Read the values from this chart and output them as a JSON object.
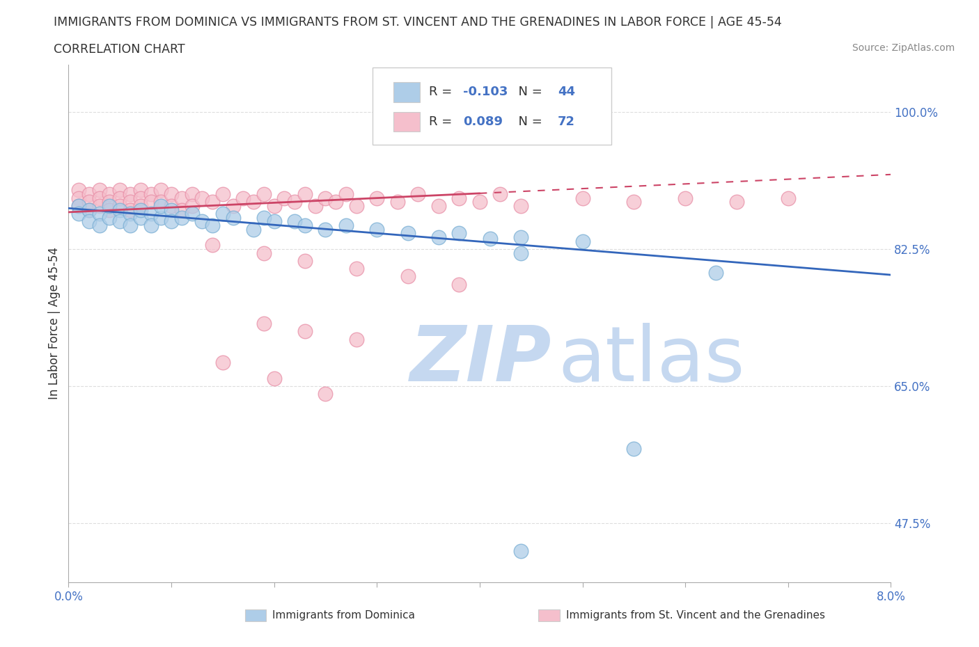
{
  "title": "IMMIGRANTS FROM DOMINICA VS IMMIGRANTS FROM ST. VINCENT AND THE GRENADINES IN LABOR FORCE | AGE 45-54",
  "subtitle": "CORRELATION CHART",
  "source": "Source: ZipAtlas.com",
  "ylabel": "In Labor Force | Age 45-54",
  "xlim": [
    0.0,
    0.08
  ],
  "ylim": [
    0.4,
    1.06
  ],
  "ytick_positions": [
    0.475,
    0.65,
    0.825,
    1.0
  ],
  "ytick_labels": [
    "47.5%",
    "65.0%",
    "82.5%",
    "100.0%"
  ],
  "xtick_positions": [
    0.0,
    0.01,
    0.02,
    0.03,
    0.04,
    0.05,
    0.06,
    0.07,
    0.08
  ],
  "dominica_R": -0.103,
  "dominica_N": 44,
  "stvincent_R": 0.089,
  "stvincent_N": 72,
  "dominica_color": "#aecde8",
  "dominica_edge": "#7aafd4",
  "stvincent_color": "#f5bfcc",
  "stvincent_edge": "#e890a8",
  "trendline_blue": "#3366bb",
  "trendline_pink": "#cc4466",
  "watermark_zip_color": "#c5d8f0",
  "watermark_atlas_color": "#c5d8f0",
  "legend_border": "#cccccc",
  "axis_color": "#4472c4",
  "text_color": "#333333",
  "grid_color": "#dddddd",
  "dominica_x": [
    0.001,
    0.001,
    0.002,
    0.002,
    0.003,
    0.003,
    0.004,
    0.004,
    0.005,
    0.005,
    0.006,
    0.006,
    0.007,
    0.007,
    0.008,
    0.008,
    0.009,
    0.009,
    0.01,
    0.01,
    0.011,
    0.012,
    0.013,
    0.014,
    0.015,
    0.016,
    0.018,
    0.019,
    0.02,
    0.022,
    0.023,
    0.025,
    0.027,
    0.03,
    0.033,
    0.036,
    0.038,
    0.041,
    0.044,
    0.05,
    0.055,
    0.063,
    0.044,
    0.044
  ],
  "dominica_y": [
    0.88,
    0.87,
    0.875,
    0.86,
    0.87,
    0.855,
    0.865,
    0.88,
    0.875,
    0.86,
    0.87,
    0.855,
    0.865,
    0.875,
    0.87,
    0.855,
    0.865,
    0.88,
    0.875,
    0.86,
    0.865,
    0.87,
    0.86,
    0.855,
    0.87,
    0.865,
    0.85,
    0.865,
    0.86,
    0.86,
    0.855,
    0.85,
    0.855,
    0.85,
    0.845,
    0.84,
    0.845,
    0.838,
    0.84,
    0.835,
    0.57,
    0.795,
    0.44,
    0.82
  ],
  "stvincent_x": [
    0.001,
    0.001,
    0.001,
    0.002,
    0.002,
    0.002,
    0.003,
    0.003,
    0.003,
    0.004,
    0.004,
    0.004,
    0.005,
    0.005,
    0.005,
    0.006,
    0.006,
    0.006,
    0.007,
    0.007,
    0.007,
    0.008,
    0.008,
    0.009,
    0.009,
    0.01,
    0.01,
    0.011,
    0.011,
    0.012,
    0.012,
    0.013,
    0.014,
    0.015,
    0.016,
    0.017,
    0.018,
    0.019,
    0.02,
    0.021,
    0.022,
    0.023,
    0.024,
    0.025,
    0.026,
    0.027,
    0.028,
    0.03,
    0.032,
    0.034,
    0.036,
    0.038,
    0.04,
    0.042,
    0.044,
    0.05,
    0.055,
    0.06,
    0.065,
    0.07,
    0.014,
    0.019,
    0.023,
    0.028,
    0.033,
    0.038,
    0.019,
    0.023,
    0.028,
    0.015,
    0.02,
    0.025
  ],
  "stvincent_y": [
    0.9,
    0.89,
    0.88,
    0.895,
    0.885,
    0.875,
    0.9,
    0.89,
    0.88,
    0.895,
    0.885,
    0.875,
    0.9,
    0.89,
    0.88,
    0.895,
    0.885,
    0.875,
    0.9,
    0.89,
    0.88,
    0.895,
    0.885,
    0.9,
    0.885,
    0.895,
    0.88,
    0.89,
    0.875,
    0.895,
    0.88,
    0.89,
    0.885,
    0.895,
    0.88,
    0.89,
    0.885,
    0.895,
    0.88,
    0.89,
    0.885,
    0.895,
    0.88,
    0.89,
    0.885,
    0.895,
    0.88,
    0.89,
    0.885,
    0.895,
    0.88,
    0.89,
    0.885,
    0.895,
    0.88,
    0.89,
    0.885,
    0.89,
    0.885,
    0.89,
    0.83,
    0.82,
    0.81,
    0.8,
    0.79,
    0.78,
    0.73,
    0.72,
    0.71,
    0.68,
    0.66,
    0.64
  ]
}
